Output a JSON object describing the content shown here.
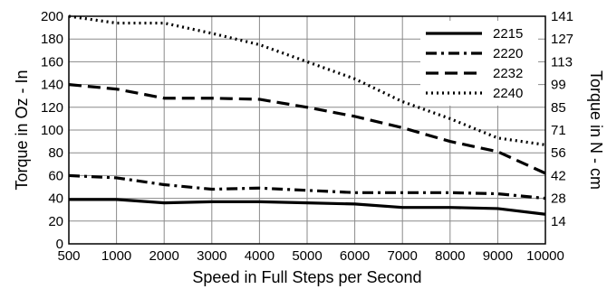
{
  "chart_data": {
    "type": "line",
    "title": "",
    "xlabel": "Speed in Full Steps per Second",
    "ylabel": "Torque in Oz - In",
    "y2label": "Torque in N - cm",
    "x_categories": [
      "500",
      "1000",
      "2000",
      "3000",
      "4000",
      "5000",
      "6000",
      "7000",
      "8000",
      "9000",
      "10000"
    ],
    "ylim": [
      0,
      200
    ],
    "yticks": [
      0,
      20,
      40,
      60,
      80,
      100,
      120,
      140,
      160,
      180,
      200
    ],
    "y2ticks": [
      "14",
      "28",
      "42",
      "56",
      "71",
      "85",
      "99",
      "113",
      "127",
      "141"
    ],
    "grid": true,
    "legend_position": "top-right",
    "series": [
      {
        "name": "2215",
        "style": "solid",
        "values": [
          39,
          39,
          36,
          37,
          37,
          36,
          35,
          32,
          32,
          31,
          26
        ]
      },
      {
        "name": "2220",
        "style": "dash-dot",
        "values": [
          60,
          58,
          52,
          48,
          49,
          47,
          45,
          45,
          45,
          44,
          40
        ]
      },
      {
        "name": "2232",
        "style": "dashed",
        "values": [
          140,
          136,
          128,
          128,
          127,
          120,
          112,
          102,
          90,
          81,
          62
        ]
      },
      {
        "name": "2240",
        "style": "dotted",
        "values": [
          200,
          194,
          194,
          185,
          175,
          160,
          145,
          125,
          110,
          93,
          87
        ]
      }
    ]
  }
}
